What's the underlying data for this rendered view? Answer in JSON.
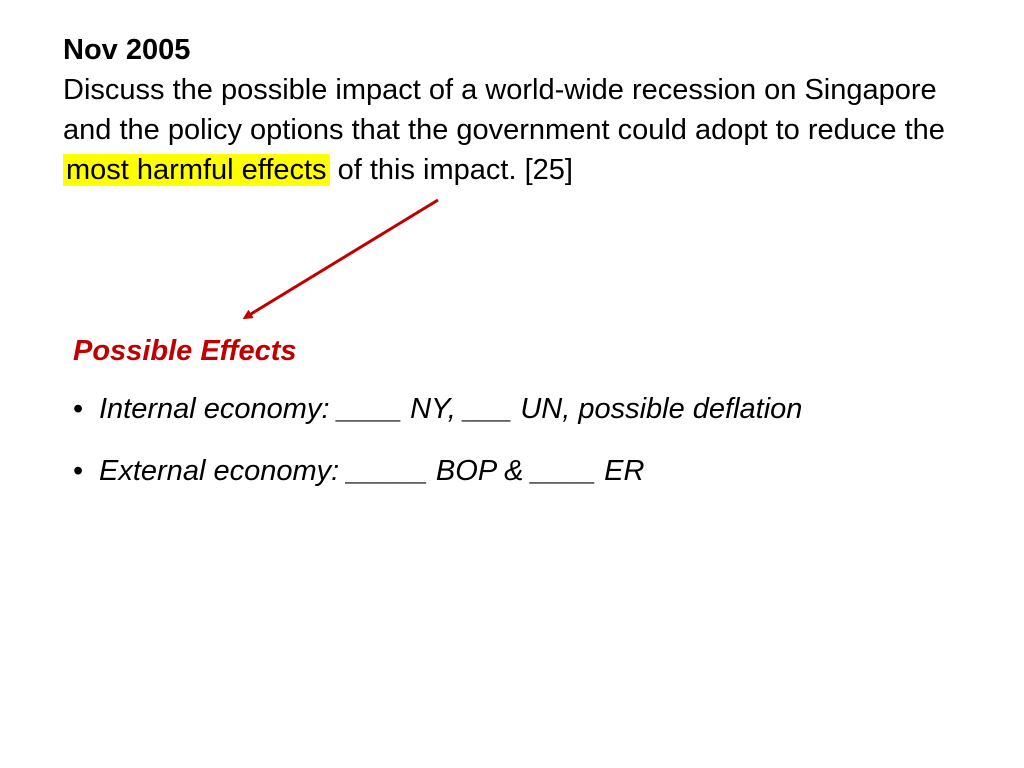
{
  "question": {
    "date": "Nov 2005",
    "text_before": "Discuss the possible impact of a world-wide recession on Singapore and the policy options that the government could adopt to reduce the ",
    "highlight": "most harmful effects",
    "text_after": " of this impact. [25]"
  },
  "effects": {
    "heading": "Possible Effects",
    "bullets": [
      "Internal economy: ____ NY, ___ UN, possible deflation",
      "External economy: _____ BOP & ____ ER"
    ]
  },
  "colors": {
    "heading": "#c00000",
    "highlight": "#ffff00",
    "arrow": "#c00000"
  },
  "icons": {
    "bullet": "bullet-dot",
    "arrow": "red-arrow"
  }
}
